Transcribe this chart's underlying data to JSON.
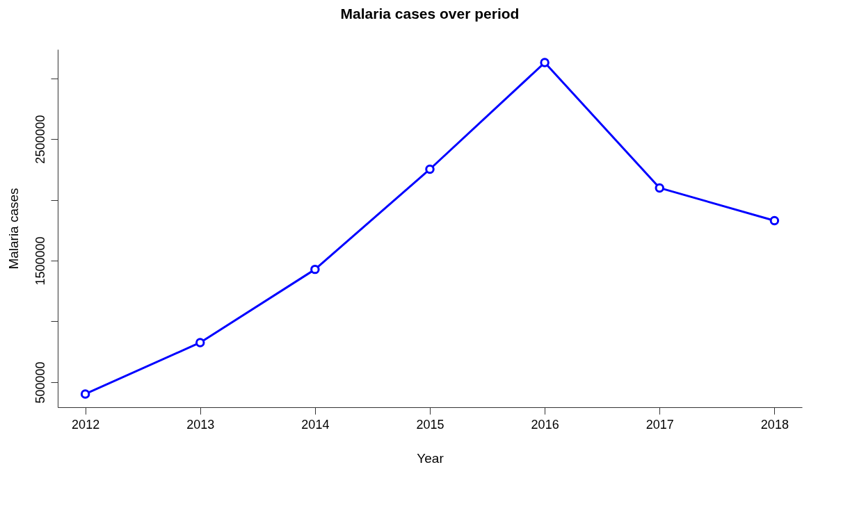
{
  "chart_data": {
    "type": "line",
    "title": "Malaria cases over period",
    "xlabel": "Year",
    "ylabel": "Malaria cases",
    "x": [
      2012,
      2013,
      2014,
      2015,
      2016,
      2017,
      2018
    ],
    "series": [
      {
        "color": "#0000ff",
        "values": [
          403000,
          826000,
          1428000,
          2252000,
          3129000,
          2098000,
          1829000
        ]
      }
    ],
    "xlim": [
      2011.76,
      2018.24
    ],
    "xticks": [
      2012,
      2013,
      2014,
      2015,
      2016,
      2017,
      2018
    ],
    "ylim": [
      294000,
      3238000
    ],
    "yticks": [
      500000,
      {
        "value": 1000000,
        "label": null
      },
      1500000,
      {
        "value": 2000000,
        "label": null
      },
      2500000,
      {
        "value": 3000000,
        "label": null
      }
    ],
    "marker": "circle",
    "line_style": "solid",
    "grid": false
  }
}
